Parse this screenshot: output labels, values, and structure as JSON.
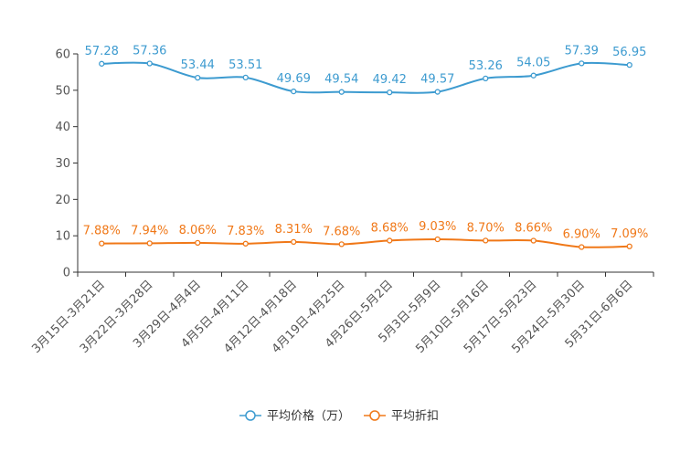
{
  "chart_data": {
    "type": "line",
    "title": "",
    "xlabel": "",
    "ylabel": "",
    "ylim": [
      0,
      60
    ],
    "yticks": [
      "0",
      "10",
      "20",
      "30",
      "40",
      "50",
      "60"
    ],
    "categories": [
      "3月15日-3月21日",
      "3月22日-3月28日",
      "3月29日-4月4日",
      "4月5日-4月11日",
      "4月12日-4月18日",
      "4月19日-4月25日",
      "4月26日-5月2日",
      "5月3日-5月9日",
      "5月10日-5月16日",
      "5月17日-5月23日",
      "5月24日-5月30日",
      "5月31日-6月6日"
    ],
    "series": [
      {
        "name": "平均价格（万）",
        "color": "#3d9bd0",
        "values": [
          57.28,
          57.36,
          53.44,
          53.51,
          49.69,
          49.54,
          49.42,
          49.57,
          53.26,
          54.05,
          57.39,
          56.95
        ],
        "labels": [
          "57.28",
          "57.36",
          "53.44",
          "53.51",
          "49.69",
          "49.54",
          "49.42",
          "49.57",
          "53.26",
          "54.05",
          "57.39",
          "56.95"
        ]
      },
      {
        "name": "平均折扣",
        "color": "#f07818",
        "values": [
          7.88,
          7.94,
          8.06,
          7.83,
          8.31,
          7.68,
          8.68,
          9.03,
          8.7,
          8.66,
          6.9,
          7.09
        ],
        "labels": [
          "7.88%",
          "7.94%",
          "8.06%",
          "7.83%",
          "8.31%",
          "7.68%",
          "8.68%",
          "9.03%",
          "8.70%",
          "8.66%",
          "6.90%",
          "7.09%"
        ]
      }
    ],
    "legend": "bottom-center",
    "grid": false
  }
}
